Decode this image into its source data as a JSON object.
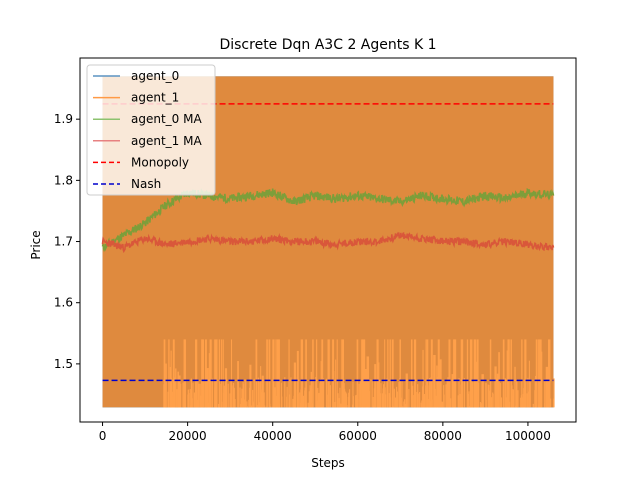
{
  "chart_data": {
    "type": "line",
    "title": "Discrete Dqn A3C 2 Agents K 1",
    "xlabel": "Steps",
    "ylabel": "Price",
    "xlim": [
      -5300,
      111300
    ],
    "ylim": [
      1.405,
      2.0
    ],
    "xticks": [
      0,
      20000,
      40000,
      60000,
      80000,
      100000
    ],
    "yticks": [
      1.5,
      1.6,
      1.7,
      1.8,
      1.9
    ],
    "ytick_labels": [
      "1.5",
      "1.6",
      "1.7",
      "1.8",
      "1.9"
    ],
    "xtick_labels": [
      "0",
      "20000",
      "40000",
      "60000",
      "80000",
      "100000"
    ],
    "grid": false,
    "legend_position": "top-left",
    "x_range": [
      0,
      106000
    ],
    "price_band": [
      1.429,
      1.97
    ],
    "series": [
      {
        "name": "agent_0",
        "color": "#1f77b4",
        "style": "solid",
        "min": 1.429,
        "max": 1.97
      },
      {
        "name": "agent_1",
        "color": "#ff7f0e",
        "style": "solid",
        "min": 1.429,
        "max": 1.97,
        "frequent_low_values": [
          1.429,
          1.54
        ]
      },
      {
        "name": "agent_0 MA",
        "color": "#2ca02c",
        "style": "solid",
        "x": [
          0,
          5000,
          10000,
          15000,
          20000,
          25000,
          30000,
          35000,
          40000,
          45000,
          50000,
          55000,
          60000,
          65000,
          70000,
          75000,
          80000,
          85000,
          90000,
          95000,
          100000,
          106000
        ],
        "values": [
          1.69,
          1.71,
          1.73,
          1.76,
          1.78,
          1.775,
          1.77,
          1.775,
          1.78,
          1.765,
          1.775,
          1.77,
          1.775,
          1.77,
          1.765,
          1.775,
          1.77,
          1.765,
          1.775,
          1.77,
          1.78,
          1.775
        ]
      },
      {
        "name": "agent_1 MA",
        "color": "#d62728",
        "style": "solid",
        "x": [
          0,
          5000,
          10000,
          15000,
          20000,
          25000,
          30000,
          35000,
          40000,
          45000,
          50000,
          55000,
          60000,
          65000,
          70000,
          75000,
          80000,
          85000,
          90000,
          95000,
          100000,
          106000
        ],
        "values": [
          1.7,
          1.69,
          1.705,
          1.695,
          1.7,
          1.705,
          1.7,
          1.7,
          1.705,
          1.7,
          1.7,
          1.695,
          1.7,
          1.7,
          1.71,
          1.705,
          1.7,
          1.7,
          1.695,
          1.7,
          1.695,
          1.69
        ]
      },
      {
        "name": "Monopoly",
        "color": "#ff0000",
        "style": "dashed",
        "value": 1.925
      },
      {
        "name": "Nash",
        "color": "#0000cc",
        "style": "dashed",
        "value": 1.473
      }
    ]
  }
}
